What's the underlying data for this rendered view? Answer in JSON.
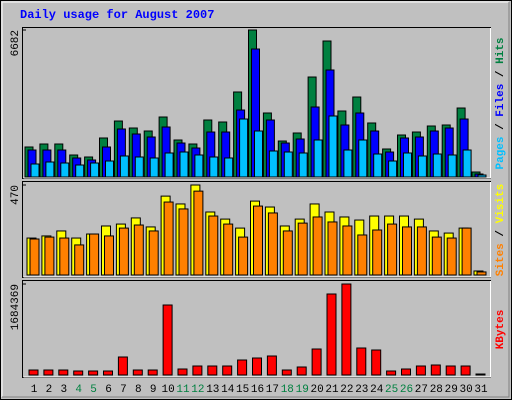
{
  "title": "Daily usage for August 2007",
  "chart_data": [
    {
      "type": "bar",
      "categories": [
        "1",
        "2",
        "3",
        "4",
        "5",
        "6",
        "7",
        "8",
        "9",
        "10",
        "11",
        "12",
        "13",
        "14",
        "15",
        "16",
        "17",
        "18",
        "19",
        "20",
        "21",
        "22",
        "23",
        "24",
        "25",
        "26",
        "27",
        "28",
        "29",
        "30",
        "31"
      ],
      "category_colors": [
        "#000000",
        "#000000",
        "#000000",
        "#008040",
        "#008040",
        "#000000",
        "#000000",
        "#000000",
        "#000000",
        "#000000",
        "#008040",
        "#008040",
        "#000000",
        "#000000",
        "#000000",
        "#000000",
        "#000000",
        "#008040",
        "#008040",
        "#000000",
        "#000000",
        "#000000",
        "#000000",
        "#000000",
        "#008040",
        "#008040",
        "#000000",
        "#000000",
        "#000000",
        "#000000",
        "#000000"
      ],
      "ylim": [
        0,
        6682
      ],
      "yticks": [
        6682
      ],
      "legend_separator": " / ",
      "series": [
        {
          "name": "Hits",
          "color": "#008040",
          "values": [
            1364,
            1500,
            1500,
            1000,
            909,
            1773,
            2545,
            2227,
            2091,
            2727,
            1682,
            1500,
            2591,
            2500,
            3864,
            6682,
            2909,
            1636,
            2000,
            4545,
            6182,
            3000,
            3636,
            2455,
            1273,
            1909,
            2045,
            2318,
            2364,
            3136,
            227
          ]
        },
        {
          "name": "Files",
          "color": "#0000ff",
          "values": [
            1227,
            1227,
            1227,
            864,
            773,
            1364,
            2182,
            1955,
            1818,
            2273,
            1545,
            1318,
            2045,
            2045,
            3045,
            5818,
            2591,
            1545,
            1727,
            3182,
            4864,
            2364,
            2909,
            2091,
            1136,
            1773,
            1818,
            2091,
            2227,
            2636,
            136
          ]
        },
        {
          "name": "Pages",
          "color": "#00c0ff",
          "values": [
            591,
            682,
            636,
            545,
            636,
            727,
            955,
            909,
            864,
            1091,
            1136,
            1000,
            909,
            864,
            2636,
            2091,
            1182,
            1136,
            1091,
            1682,
            2773,
            1227,
            1682,
            1045,
            727,
            1091,
            955,
            1045,
            1000,
            1227,
            91
          ]
        }
      ]
    },
    {
      "type": "bar",
      "ylim": [
        0,
        470
      ],
      "yticks": [
        470
      ],
      "legend_separator": " / ",
      "series": [
        {
          "name": "Visits",
          "color": "#ffff00",
          "values": [
            193,
            204,
            230,
            193,
            214,
            256,
            266,
            298,
            251,
            412,
            371,
            470,
            329,
            292,
            245,
            386,
            355,
            256,
            292,
            371,
            329,
            303,
            287,
            308,
            308,
            308,
            292,
            230,
            219,
            245,
            21
          ]
        },
        {
          "name": "Sites",
          "color": "#ff8000",
          "values": [
            188,
            198,
            193,
            157,
            214,
            204,
            245,
            261,
            230,
            381,
            345,
            438,
            308,
            266,
            198,
            360,
            324,
            230,
            271,
            303,
            277,
            256,
            209,
            235,
            266,
            251,
            251,
            198,
            193,
            245,
            16
          ]
        }
      ]
    },
    {
      "type": "bar",
      "ylim": [
        0,
        1684369
      ],
      "yticks": [
        1684369
      ],
      "series": [
        {
          "name": "KBytes",
          "color": "#ff0000",
          "values": [
            92550,
            92550,
            92550,
            74040,
            74040,
            74040,
            333180,
            92550,
            92550,
            1295700,
            111060,
            166590,
            166590,
            166590,
            277650,
            314670,
            351690,
            92550,
            148080,
            481260,
            1499310,
            1684369,
            499770,
            462750,
            74040,
            111060,
            166590,
            185100,
            166590,
            166590,
            18510
          ]
        }
      ]
    }
  ]
}
